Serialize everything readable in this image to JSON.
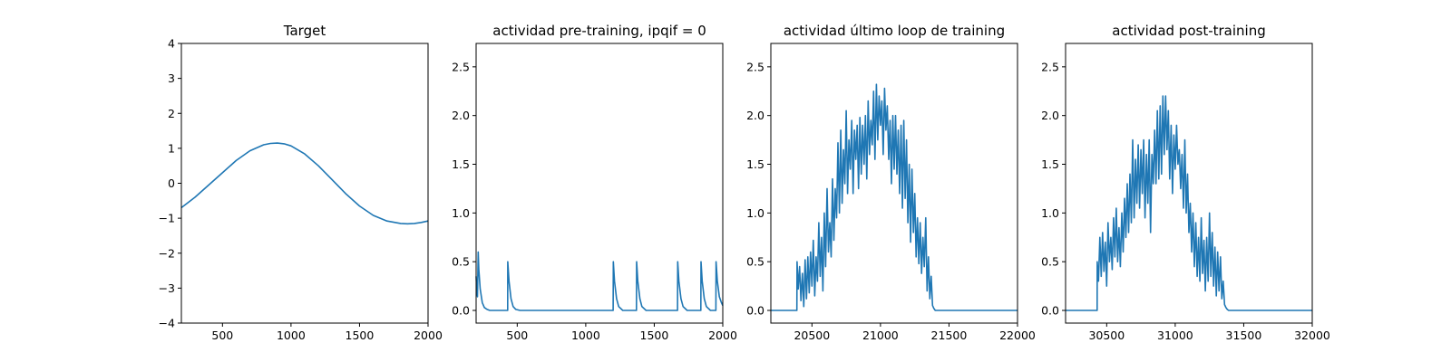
{
  "colors": {
    "series": "#1f77b4",
    "axes": "#000000",
    "background": "#ffffff"
  },
  "chart_data": [
    {
      "type": "line",
      "title": "Target",
      "xlim": [
        200,
        2000
      ],
      "ylim": [
        -4,
        4
      ],
      "xticks": [
        500,
        1000,
        1500,
        2000
      ],
      "yticks": [
        -4,
        -3,
        -2,
        -1,
        0,
        1,
        2,
        3,
        4
      ],
      "x": [
        200,
        300,
        400,
        500,
        600,
        700,
        800,
        850,
        900,
        950,
        1000,
        1100,
        1200,
        1300,
        1400,
        1500,
        1600,
        1700,
        1800,
        1850,
        1900,
        1950,
        2000
      ],
      "y": [
        -0.7,
        -0.4,
        -0.05,
        0.3,
        0.65,
        0.93,
        1.1,
        1.14,
        1.15,
        1.13,
        1.07,
        0.84,
        0.5,
        0.1,
        -0.3,
        -0.65,
        -0.92,
        -1.08,
        -1.15,
        -1.16,
        -1.15,
        -1.12,
        -1.08
      ]
    },
    {
      "type": "line",
      "title": "actividad pre-training, ipqif = 0",
      "xlim": [
        200,
        2000
      ],
      "ylim": [
        -0.13,
        2.74
      ],
      "xticks": [
        500,
        1000,
        1500,
        2000
      ],
      "yticks": [
        0.0,
        0.5,
        1.0,
        1.5,
        2.0,
        2.5
      ],
      "ytick_labels": [
        "0.0",
        "0.5",
        "1.0",
        "1.5",
        "2.0",
        "2.5"
      ],
      "x": [
        200,
        205,
        210,
        215,
        220,
        230,
        245,
        260,
        280,
        300,
        350,
        400,
        430,
        431,
        440,
        455,
        470,
        490,
        520,
        1000,
        1200,
        1201,
        1210,
        1225,
        1240,
        1270,
        1370,
        1371,
        1380,
        1395,
        1410,
        1440,
        1670,
        1671,
        1680,
        1695,
        1710,
        1740,
        1840,
        1841,
        1850,
        1865,
        1880,
        1910,
        1950,
        1951,
        1960,
        1975,
        1990,
        2000
      ],
      "y": [
        0.35,
        0.2,
        0.14,
        0.6,
        0.42,
        0.22,
        0.08,
        0.03,
        0.01,
        0.0,
        0.0,
        0.0,
        0.0,
        0.5,
        0.3,
        0.12,
        0.04,
        0.01,
        0.0,
        0.0,
        0.0,
        0.5,
        0.3,
        0.12,
        0.04,
        0.0,
        0.0,
        0.5,
        0.3,
        0.12,
        0.04,
        0.0,
        0.0,
        0.5,
        0.3,
        0.12,
        0.04,
        0.0,
        0.0,
        0.5,
        0.3,
        0.12,
        0.04,
        0.0,
        0.0,
        0.5,
        0.3,
        0.14,
        0.08,
        0.05
      ]
    },
    {
      "type": "line",
      "title": "actividad último loop de training",
      "xlim": [
        20200,
        22000
      ],
      "ylim": [
        -0.13,
        2.74
      ],
      "xticks": [
        20500,
        21000,
        21500,
        22000
      ],
      "yticks": [
        0.0,
        0.5,
        1.0,
        1.5,
        2.0,
        2.5
      ],
      "ytick_labels": [
        "0.0",
        "0.5",
        "1.0",
        "1.5",
        "2.0",
        "2.5"
      ],
      "x": [
        20200,
        20390,
        20391,
        20400,
        20410,
        20420,
        20430,
        20440,
        20450,
        20460,
        20470,
        20480,
        20490,
        20500,
        20510,
        20520,
        20530,
        20540,
        20550,
        20560,
        20570,
        20580,
        20590,
        20600,
        20610,
        20620,
        20630,
        20640,
        20650,
        20660,
        20670,
        20680,
        20690,
        20700,
        20710,
        20720,
        20730,
        20740,
        20750,
        20760,
        20770,
        20780,
        20790,
        20800,
        20810,
        20820,
        20830,
        20840,
        20850,
        20860,
        20870,
        20880,
        20890,
        20900,
        20910,
        20920,
        20930,
        20940,
        20950,
        20960,
        20970,
        20980,
        20990,
        21000,
        21010,
        21020,
        21030,
        21040,
        21050,
        21060,
        21070,
        21080,
        21090,
        21100,
        21110,
        21120,
        21130,
        21140,
        21150,
        21160,
        21170,
        21180,
        21190,
        21200,
        21210,
        21220,
        21230,
        21240,
        21250,
        21260,
        21270,
        21280,
        21290,
        21300,
        21310,
        21320,
        21330,
        21340,
        21350,
        21360,
        21370,
        21380,
        21390,
        21400,
        21420,
        21440,
        21470,
        21500,
        22000
      ],
      "y": [
        0.0,
        0.0,
        0.5,
        0.22,
        0.45,
        0.1,
        0.38,
        0.04,
        0.52,
        0.12,
        0.55,
        0.18,
        0.6,
        0.25,
        0.72,
        0.15,
        0.55,
        0.3,
        0.9,
        0.35,
        0.75,
        0.2,
        1.0,
        0.45,
        1.25,
        0.6,
        0.9,
        0.55,
        1.35,
        0.72,
        1.25,
        0.95,
        1.72,
        1.0,
        1.85,
        1.1,
        1.65,
        1.3,
        2.05,
        1.2,
        1.75,
        1.45,
        1.95,
        1.2,
        1.85,
        1.55,
        1.9,
        1.25,
        1.98,
        1.4,
        1.9,
        1.5,
        2.0,
        1.35,
        2.15,
        1.6,
        1.95,
        1.7,
        2.25,
        1.55,
        2.32,
        1.75,
        2.2,
        1.9,
        2.15,
        1.6,
        2.28,
        1.85,
        2.1,
        1.55,
        1.95,
        1.3,
        2.0,
        1.45,
        2.0,
        1.4,
        1.85,
        1.2,
        1.9,
        1.05,
        1.95,
        1.15,
        1.75,
        0.9,
        1.5,
        0.7,
        1.45,
        0.8,
        1.2,
        0.55,
        0.95,
        0.48,
        0.9,
        0.38,
        0.75,
        0.45,
        0.95,
        0.2,
        0.55,
        0.12,
        0.35,
        0.05,
        0.02,
        0.0,
        0.0,
        0.0,
        0.0,
        0.0,
        0.0
      ]
    },
    {
      "type": "line",
      "title": "actividad post-training",
      "xlim": [
        30200,
        32000
      ],
      "ylim": [
        -0.13,
        2.74
      ],
      "xticks": [
        30500,
        31000,
        31500,
        32000
      ],
      "yticks": [
        0.0,
        0.5,
        1.0,
        1.5,
        2.0,
        2.5
      ],
      "ytick_labels": [
        "0.0",
        "0.5",
        "1.0",
        "1.5",
        "2.0",
        "2.5"
      ],
      "x": [
        30200,
        30430,
        30431,
        30440,
        30450,
        30460,
        30470,
        30480,
        30490,
        30500,
        30510,
        30520,
        30530,
        30540,
        30550,
        30560,
        30570,
        30580,
        30590,
        30600,
        30610,
        30620,
        30630,
        30640,
        30650,
        30660,
        30670,
        30680,
        30690,
        30700,
        30710,
        30720,
        30730,
        30740,
        30750,
        30760,
        30770,
        30780,
        30790,
        30800,
        30810,
        30820,
        30830,
        30840,
        30850,
        30860,
        30870,
        30880,
        30890,
        30900,
        30910,
        30920,
        30930,
        30940,
        30950,
        30960,
        30970,
        30980,
        30990,
        31000,
        31010,
        31020,
        31030,
        31040,
        31050,
        31060,
        31070,
        31080,
        31090,
        31100,
        31110,
        31120,
        31130,
        31140,
        31150,
        31160,
        31170,
        31180,
        31190,
        31200,
        31210,
        31220,
        31230,
        31240,
        31250,
        31260,
        31270,
        31280,
        31290,
        31300,
        31310,
        31320,
        31330,
        31340,
        31350,
        31360,
        31370,
        31380,
        31390,
        31400,
        31450,
        31500,
        32000
      ],
      "y": [
        0.0,
        0.0,
        0.5,
        0.3,
        0.75,
        0.35,
        0.8,
        0.4,
        0.7,
        0.25,
        0.9,
        0.5,
        0.75,
        0.42,
        0.95,
        0.55,
        1.05,
        0.5,
        0.85,
        0.45,
        1.0,
        0.6,
        1.15,
        0.75,
        1.3,
        0.8,
        1.4,
        0.9,
        1.75,
        0.95,
        1.55,
        1.1,
        1.7,
        1.05,
        1.65,
        1.2,
        1.75,
        0.95,
        1.6,
        1.1,
        1.75,
        0.8,
        1.6,
        1.3,
        1.85,
        1.3,
        2.05,
        1.35,
        2.1,
        1.4,
        2.2,
        1.6,
        2.2,
        1.65,
        2.05,
        1.35,
        1.9,
        1.2,
        1.8,
        1.45,
        1.9,
        1.5,
        1.65,
        1.25,
        1.6,
        1.05,
        1.75,
        1.0,
        1.4,
        0.8,
        1.1,
        0.6,
        1.0,
        0.45,
        0.9,
        0.35,
        0.75,
        0.3,
        0.95,
        0.38,
        0.72,
        0.2,
        0.75,
        0.3,
        1.0,
        0.35,
        0.8,
        0.25,
        0.65,
        0.15,
        0.6,
        0.2,
        0.55,
        0.12,
        0.3,
        0.06,
        0.03,
        0.01,
        0.0,
        0.0,
        0.0,
        0.0,
        0.0
      ]
    }
  ]
}
